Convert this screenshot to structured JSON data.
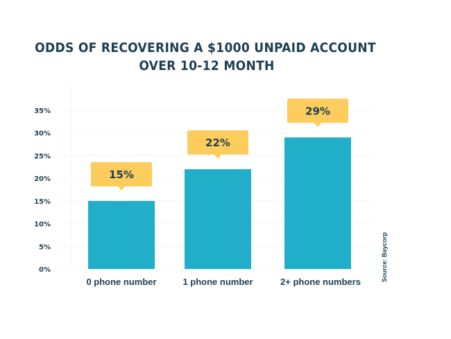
{
  "chart_data": {
    "type": "bar",
    "title_lines": [
      "ODDS OF RECOVERING A $1000 UNPAID ACCOUNT",
      "OVER 10-12 MONTH"
    ],
    "categories": [
      "0 phone number",
      "1 phone number",
      "2+ phone numbers"
    ],
    "values": [
      15,
      22,
      29
    ],
    "data_labels": [
      "15%",
      "22%",
      "29%"
    ],
    "ylim": [
      0,
      35
    ],
    "yticks": [
      "0%",
      "5%",
      "10%",
      "15%",
      "20%",
      "25%",
      "30%",
      "35%"
    ],
    "grid": true,
    "bar_color": "#20aec9",
    "label_box_color": "#fccc5c",
    "text_color": "#1d3e52",
    "source": "Source: Baycorp"
  }
}
